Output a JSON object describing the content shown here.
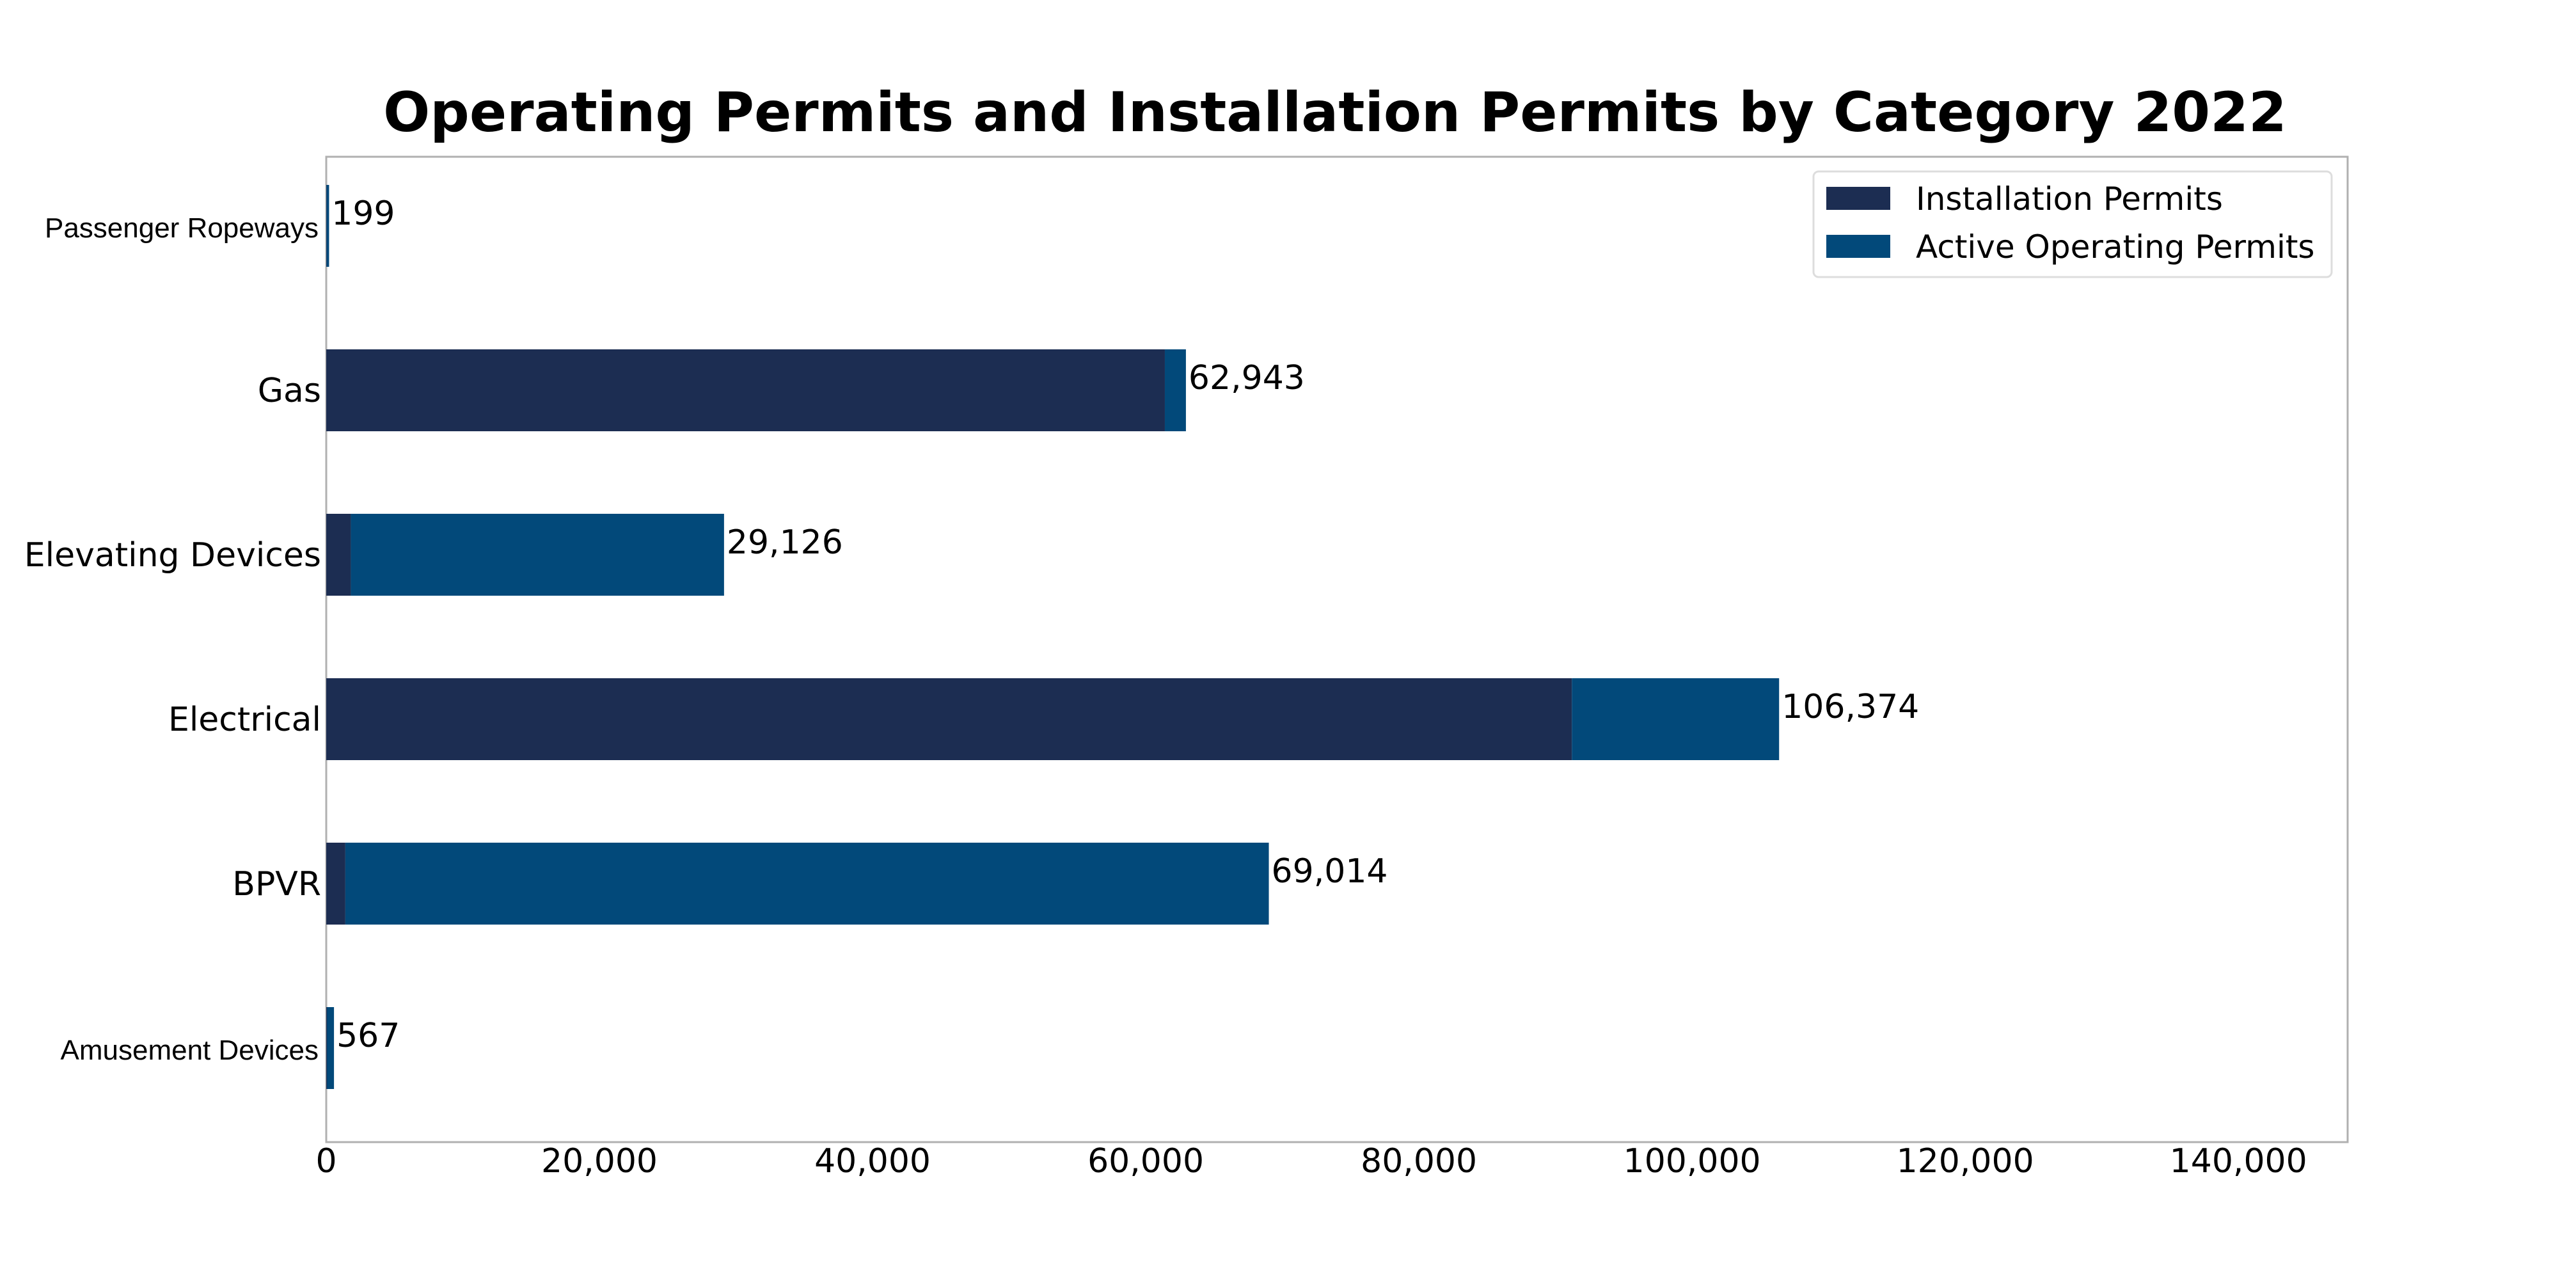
{
  "chart_data": {
    "type": "bar",
    "orientation": "horizontal",
    "stacked": true,
    "title": "Operating Permits and Installation Permits by Category 2022",
    "xlabel": "",
    "ylabel": "",
    "xlim": [
      0,
      148000
    ],
    "xticks": [
      0,
      20000,
      40000,
      60000,
      80000,
      100000,
      120000,
      140000
    ],
    "xtick_labels": [
      "0",
      "20,000",
      "40,000",
      "60,000",
      "80,000",
      "100,000",
      "120,000",
      "140,000"
    ],
    "grid": false,
    "legend_position": "top-right",
    "categories": [
      "Passenger Ropeways",
      "Gas",
      "Elevating Devices",
      "Electrical",
      "BPVR",
      "Amusement Devices"
    ],
    "series": [
      {
        "name": "Installation Permits",
        "color": "#1c2d52",
        "values": [
          20,
          61400,
          1800,
          91200,
          1400,
          60
        ]
      },
      {
        "name": "Active Operating Permits",
        "color": "#02497a",
        "values": [
          179,
          1543,
          27326,
          15174,
          67614,
          507
        ]
      }
    ],
    "totals": [
      199,
      62943,
      29126,
      106374,
      69014,
      567
    ],
    "total_labels": [
      "199",
      "62,943",
      "29,126",
      "106,374",
      "69,014",
      "567"
    ]
  }
}
